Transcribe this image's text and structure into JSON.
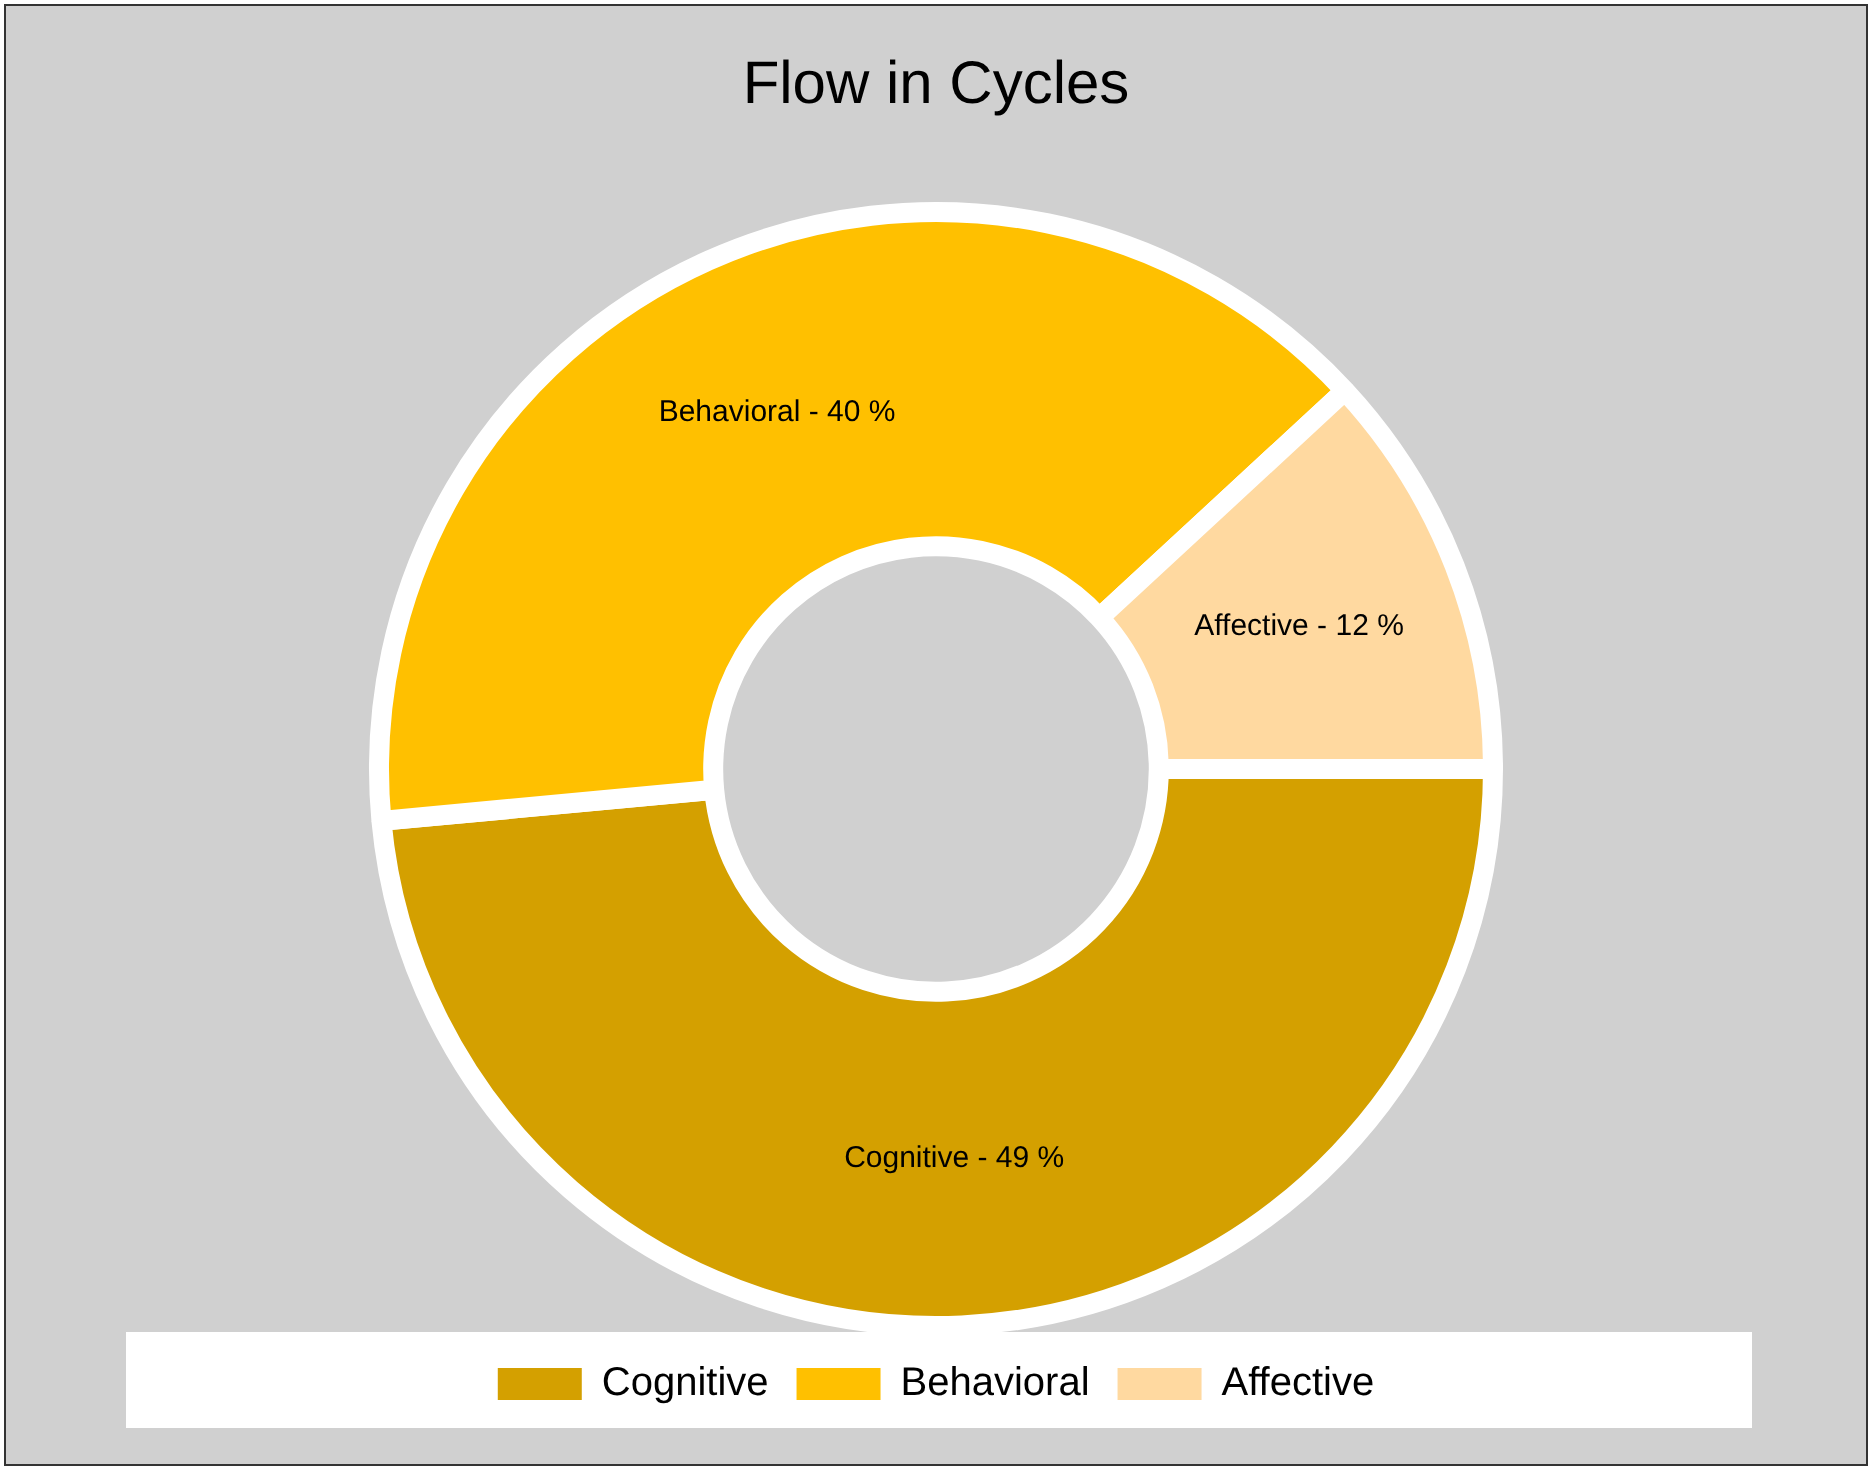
{
  "chart_data": {
    "type": "donut",
    "title": "Flow in Cycles",
    "categories": [
      "Cognitive",
      "Behavioral",
      "Affective"
    ],
    "values": [
      49,
      40,
      12
    ],
    "value_labels": [
      "49 %",
      "40 %",
      "12 %"
    ],
    "annotations": [
      "-",
      "-",
      "-"
    ],
    "colors": [
      "#d4a000",
      "#ffc000",
      "#ffd9a0"
    ],
    "legend": "bottom"
  }
}
